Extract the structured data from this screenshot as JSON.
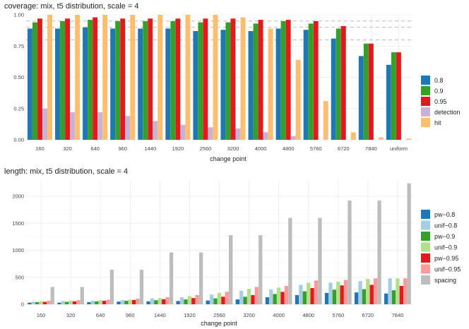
{
  "chart_data": [
    {
      "type": "bar",
      "title": "coverage: mix, t5 distribution, scale = 4",
      "xlabel": "change point",
      "ylabel": "",
      "ylim": [
        0,
        1.0
      ],
      "yticks": [
        0.0,
        0.25,
        0.5,
        0.75,
        1.0
      ],
      "ytick_labels": [
        "0.00",
        "0.25",
        "0.50",
        "0.75",
        "1.00"
      ],
      "reference_lines": [
        0.8,
        0.9,
        0.95
      ],
      "legend_position": "right",
      "categories": [
        "160",
        "320",
        "640",
        "960",
        "1440",
        "1920",
        "2560",
        "3200",
        "4000",
        "4800",
        "5760",
        "6720",
        "7840",
        "uniform"
      ],
      "series": [
        {
          "name": "0.8",
          "color": "#1f78b4",
          "values": [
            0.89,
            0.89,
            0.9,
            0.89,
            0.89,
            0.89,
            0.87,
            0.88,
            0.87,
            0.89,
            0.88,
            0.81,
            0.67,
            0.6
          ]
        },
        {
          "name": "0.9",
          "color": "#33a02c",
          "values": [
            0.94,
            0.95,
            0.96,
            0.95,
            0.95,
            0.95,
            0.94,
            0.94,
            0.93,
            0.95,
            0.93,
            0.89,
            0.77,
            0.7
          ]
        },
        {
          "name": "0.95",
          "color": "#e31a1c",
          "values": [
            0.97,
            0.97,
            0.98,
            0.97,
            0.97,
            0.97,
            0.97,
            0.97,
            0.96,
            0.96,
            0.95,
            0.91,
            0.77,
            0.7
          ]
        },
        {
          "name": "detection",
          "color": "#cab2d6",
          "values": [
            0.25,
            0.22,
            0.22,
            0.19,
            0.15,
            0.12,
            0.1,
            0.09,
            0.06,
            0.03,
            0.0,
            0.0,
            0.0,
            0.0
          ]
        },
        {
          "name": "hit",
          "color": "#fdbf6f",
          "values": [
            1.0,
            1.0,
            1.0,
            1.0,
            1.0,
            1.0,
            1.0,
            0.98,
            0.89,
            0.64,
            0.31,
            0.06,
            0.02,
            0.01
          ]
        }
      ]
    },
    {
      "type": "bar",
      "title": "length: mix, t5 distribution, scale = 4",
      "xlabel": "change point",
      "ylabel": "",
      "ylim": [
        0,
        2300
      ],
      "yticks": [
        0,
        500,
        1000,
        1500,
        2000
      ],
      "ytick_labels": [
        "0",
        "500",
        "1000",
        "1500",
        "2000"
      ],
      "legend_position": "right",
      "categories": [
        "160",
        "320",
        "640",
        "960",
        "1440",
        "1920",
        "2560",
        "3200",
        "4000",
        "4800",
        "5760",
        "6720",
        "7840"
      ],
      "series": [
        {
          "name": "pw−0.8",
          "color": "#1f78b4",
          "values": [
            30,
            30,
            40,
            50,
            55,
            60,
            70,
            90,
            130,
            170,
            210,
            220,
            200
          ]
        },
        {
          "name": "unif−0.8",
          "color": "#a6cee3",
          "values": [
            50,
            60,
            65,
            75,
            110,
            130,
            180,
            250,
            275,
            360,
            400,
            430,
            480
          ]
        },
        {
          "name": "pw−0.9",
          "color": "#33a02c",
          "values": [
            40,
            45,
            55,
            65,
            75,
            90,
            110,
            140,
            190,
            240,
            270,
            280,
            260
          ]
        },
        {
          "name": "unif−0.9",
          "color": "#b2df8a",
          "values": [
            55,
            65,
            75,
            85,
            115,
            150,
            210,
            285,
            310,
            400,
            420,
            470,
            480
          ]
        },
        {
          "name": "pw−0.95",
          "color": "#e31a1c",
          "values": [
            45,
            55,
            65,
            80,
            95,
            115,
            140,
            170,
            230,
            300,
            350,
            360,
            340
          ]
        },
        {
          "name": "unif−0.95",
          "color": "#fb9a99",
          "values": [
            65,
            75,
            85,
            105,
            130,
            170,
            230,
            320,
            340,
            440,
            450,
            480,
            480
          ]
        },
        {
          "name": "spacing",
          "color": "#bdbdbd",
          "values": [
            320,
            320,
            640,
            640,
            960,
            960,
            1280,
            1280,
            1600,
            1600,
            1920,
            1920,
            2240
          ]
        }
      ]
    }
  ]
}
